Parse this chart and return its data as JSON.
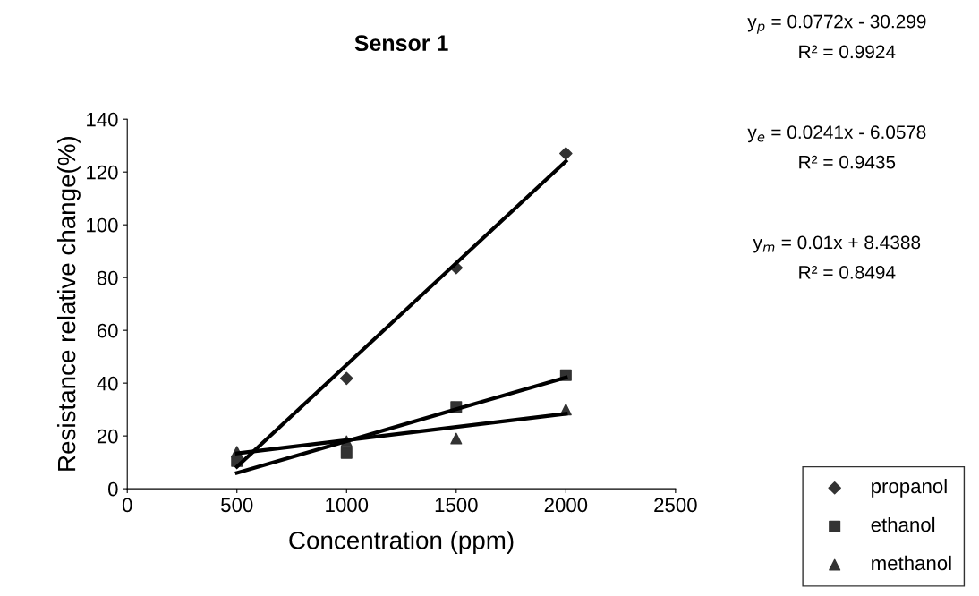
{
  "chart_data": {
    "type": "scatter",
    "title": "Sensor 1",
    "xlabel": "Concentration (ppm)",
    "ylabel": "Resistance relative change(%)",
    "x": [
      500,
      1000,
      1500,
      2000
    ],
    "series": [
      {
        "name": "propanol",
        "color": "#333333",
        "marker": "diamond",
        "values": [
          null,
          41.8,
          83.7,
          127
        ]
      },
      {
        "name": "ethanol",
        "color": "#333333",
        "marker": "square",
        "values": [
          10.5,
          13.5,
          31,
          43
        ]
      },
      {
        "name": "methanol",
        "color": "#333333",
        "marker": "triangle",
        "values": [
          14,
          18,
          19,
          30
        ]
      },
      {
        "type": "line",
        "color": "#000000",
        "values": [
          8.3,
          46.9,
          85.5,
          124.1
        ]
      },
      {
        "type": "line",
        "color": "#000000",
        "values": [
          6.0,
          18.0,
          30.1,
          42.1
        ]
      },
      {
        "type": "line",
        "color": "#000000",
        "values": [
          13.4,
          18.4,
          23.4,
          28.4
        ]
      }
    ],
    "xlim": [
      0,
      2500
    ],
    "xticks": [
      0,
      500,
      1000,
      1500,
      2000,
      2500
    ],
    "ylim": [
      0,
      140
    ],
    "yticks": [
      0,
      20,
      40,
      60,
      80,
      100,
      120,
      140
    ],
    "grid": false,
    "legend": "bottom right",
    "annotations": [
      "y$_{p}$ = 0.0772x - 30.299",
      "R² = 0.9924",
      "y$_{e}$ = 0.0241x - 6.0578",
      "R² = 0.9435",
      "y$_{m}$ = 0.01x + 8.4388",
      "R² = 0.8494"
    ]
  }
}
